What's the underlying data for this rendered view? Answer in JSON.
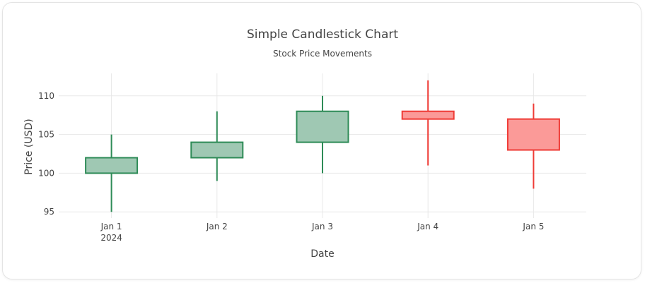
{
  "chart_data": {
    "type": "candlestick",
    "title": "Simple Candlestick Chart",
    "subtitle": "Stock Price Movements",
    "xlabel": "Date",
    "ylabel": "Price (USD)",
    "ylim": [
      94.2,
      112.9
    ],
    "y_ticks": [
      95,
      100,
      105,
      110
    ],
    "grid": true,
    "x_year_label": "2024",
    "categories": [
      "Jan 1",
      "Jan 2",
      "Jan 3",
      "Jan 4",
      "Jan 5"
    ],
    "candles": [
      {
        "date": "Jan 1",
        "open": 100,
        "high": 105,
        "low": 95,
        "close": 102
      },
      {
        "date": "Jan 2",
        "open": 102,
        "high": 108,
        "low": 99,
        "close": 104
      },
      {
        "date": "Jan 3",
        "open": 104,
        "high": 110,
        "low": 100,
        "close": 108
      },
      {
        "date": "Jan 4",
        "open": 108,
        "high": 112,
        "low": 101,
        "close": 107
      },
      {
        "date": "Jan 5",
        "open": 107,
        "high": 109,
        "low": 98,
        "close": 103
      }
    ],
    "colors": {
      "increasing_line": "#2e8b57",
      "increasing_fill": "#9fc8b3",
      "decreasing_line": "#ef3b36",
      "decreasing_fill": "#fb9a98",
      "grid": "#e8e8e8"
    }
  }
}
